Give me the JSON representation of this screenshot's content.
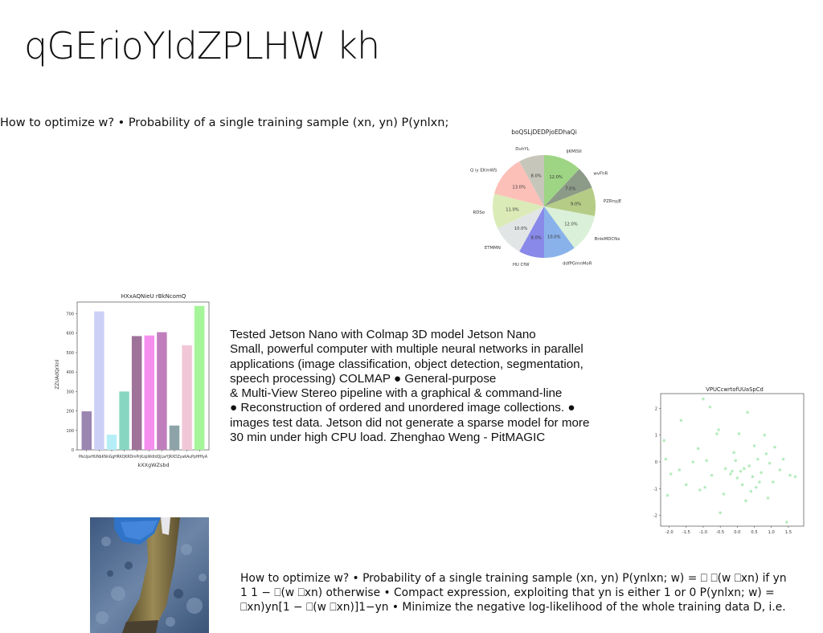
{
  "title": "qGErioYldZPLHW kh",
  "intro_text": "How to optimize w? • Probability of a single training sample (xn, yn) P(ynlxn;",
  "body_lines": [
    "Tested Jetson Nano with Colmap 3D model Jetson Nano",
    "Small, powerful computer with multiple neural networks in parallel",
    "applications (image classification, object detection, segmentation,",
    "speech processing) COLMAP ● General-purpose",
    "& Multi-View Stereo pipeline with a graphical & command-line",
    "● Reconstruction of ordered and unordered image collections. ●",
    "images test data. Jetson did not generate a sparse model for more",
    "30 min under high CPU load. Zhenghao Weng - PitMAGIC"
  ],
  "bottom_lines": [
    "How to optimize w? • Probability of a single training sample (xn, yn) P(ynlxn; w) = ⎕ ⎕(w ⎕xn) if yn",
    "1 1 − ⎕(w ⎕xn) otherwise • Compact expression, exploiting that yn is either 1 or 0 P(ynlxn; w) =",
    "⎕xn)yn[1 − ⎕(w ⎕xn)]1−yn • Minimize the negative log-likelihood of the whole training data D, i.e."
  ],
  "chart_data": [
    {
      "type": "pie",
      "title": "boQSLjDEDPjoEDhaQi",
      "labels": [
        "IjKMISIl",
        "wvFhR",
        "PZRnyjE",
        "BnleMDCNx",
        "ddfPGmnMoR",
        "HU CfW",
        "ETMMN",
        "RDSo",
        "Q iy EKmWS",
        "DuhYL"
      ],
      "values": [
        12.0,
        7.0,
        9.0,
        12.0,
        10.0,
        8.0,
        10.0,
        11.0,
        13.0,
        8.0
      ],
      "value_labels": [
        "12.0%",
        "7.0%",
        "9.0%",
        "12.0%",
        "10.0%",
        "8.0%",
        "10.0%",
        "11.0%",
        "13.0%",
        "8.0%"
      ],
      "colors": [
        "#9ed585",
        "#8c9a88",
        "#b5cc86",
        "#daf0d8",
        "#8ab2ea",
        "#8889e8",
        "#e2e5e5",
        "#dbebb8",
        "#fcc0b8",
        "#c7c6bb"
      ],
      "start_angle_deg": 90,
      "direction": "clockwise"
    },
    {
      "type": "bar",
      "title": "HXxAQNieU rBkNcomQ",
      "xlabel": "kXXgWZsbd",
      "ylabel": "ZZUAdQrXnl",
      "categories": [
        "MxUpx",
        "HUNbl",
        "KNnGgHRK",
        "qgQKH",
        "RDmPrj",
        "KzpWdtd",
        "QDjLwYJR",
        "XDZyaKA",
        "EuPp",
        "HfHyA"
      ],
      "category_labels_printed": "MxUpxHUNbKNnGgHRKQKRDmPrjKzpWdtdQjLwYJRXDZyaKAuPpHfHyA",
      "values": [
        198,
        712,
        78,
        300,
        585,
        588,
        605,
        125,
        538,
        740
      ],
      "colors": [
        "#9b85b1",
        "#cdd0f6",
        "#b5eef6",
        "#88d6c2",
        "#9f7399",
        "#f68ef0",
        "#c07fbc",
        "#8da3a8",
        "#f1c7d8",
        "#a6f59a"
      ],
      "yticks": [
        0,
        100,
        200,
        300,
        400,
        500,
        600,
        700
      ],
      "ylim": [
        0,
        760
      ]
    },
    {
      "type": "scatter",
      "title": "VPUCcwrtofUUaSpCd",
      "color": "#b8ecc0",
      "xticks": [
        -2.0,
        -1.5,
        -1.0,
        -0.5,
        0.0,
        0.5,
        1.0,
        1.5
      ],
      "yticks": [
        -2,
        -1,
        0,
        1,
        2
      ],
      "xlim": [
        -2.25,
        1.95
      ],
      "ylim": [
        -2.4,
        2.55
      ],
      "points": [
        [
          -2.15,
          0.8
        ],
        [
          -2.1,
          0.1
        ],
        [
          -2.05,
          -1.25
        ],
        [
          -1.95,
          -0.45
        ],
        [
          -1.7,
          -0.3
        ],
        [
          -1.65,
          1.55
        ],
        [
          -1.5,
          -0.85
        ],
        [
          -1.3,
          0.0
        ],
        [
          -1.15,
          0.5
        ],
        [
          -1.1,
          -1.05
        ],
        [
          -1.0,
          2.35
        ],
        [
          -0.95,
          -0.95
        ],
        [
          -0.9,
          0.05
        ],
        [
          -0.8,
          2.05
        ],
        [
          -0.75,
          -0.5
        ],
        [
          -0.6,
          1.05
        ],
        [
          -0.55,
          1.2
        ],
        [
          -0.5,
          -1.9
        ],
        [
          -0.4,
          -1.2
        ],
        [
          -0.35,
          -0.25
        ],
        [
          -0.2,
          -0.45
        ],
        [
          -0.15,
          -0.35
        ],
        [
          -0.1,
          0.35
        ],
        [
          -0.05,
          0.05
        ],
        [
          0.0,
          -0.6
        ],
        [
          0.05,
          1.05
        ],
        [
          0.1,
          -0.35
        ],
        [
          0.15,
          -0.85
        ],
        [
          0.2,
          -0.25
        ],
        [
          0.25,
          -1.45
        ],
        [
          0.3,
          1.85
        ],
        [
          0.35,
          -0.15
        ],
        [
          0.4,
          -1.1
        ],
        [
          0.45,
          -0.55
        ],
        [
          0.5,
          0.6
        ],
        [
          0.55,
          -0.95
        ],
        [
          0.6,
          0.1
        ],
        [
          0.65,
          -0.75
        ],
        [
          0.7,
          -0.4
        ],
        [
          0.8,
          1.0
        ],
        [
          0.85,
          0.3
        ],
        [
          0.9,
          -1.35
        ],
        [
          0.95,
          -0.05
        ],
        [
          1.05,
          -0.75
        ],
        [
          1.1,
          0.55
        ],
        [
          1.25,
          -0.3
        ],
        [
          1.35,
          0.1
        ],
        [
          1.45,
          -2.25
        ],
        [
          1.55,
          -0.5
        ],
        [
          1.7,
          -0.55
        ]
      ]
    }
  ]
}
